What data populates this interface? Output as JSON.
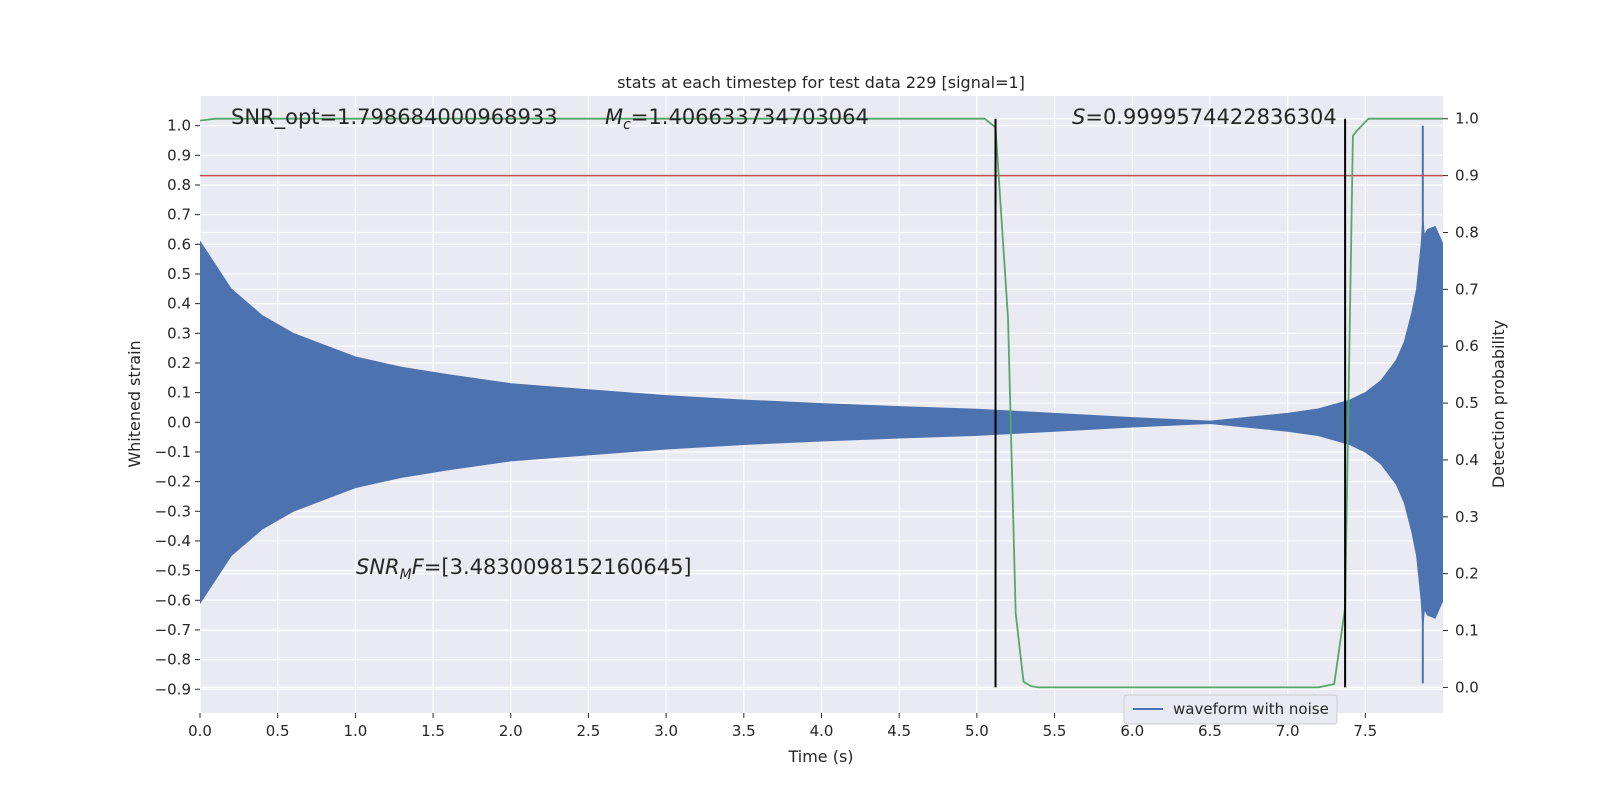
{
  "chart_data": {
    "type": "line",
    "title": "stats at each timestep for test data 229 [signal=1]",
    "xlabel": "Time (s)",
    "ylabel": "Whitened strain",
    "ylabel_right": "Detection probability",
    "xlim": [
      0,
      8.0
    ],
    "ylim": [
      -0.98,
      1.1
    ],
    "ylim_right": [
      -0.045,
      1.04
    ],
    "x_ticks": [
      "0.0",
      "0.5",
      "1.0",
      "1.5",
      "2.0",
      "2.5",
      "3.0",
      "3.5",
      "4.0",
      "4.5",
      "5.0",
      "5.5",
      "6.0",
      "6.5",
      "7.0",
      "7.5"
    ],
    "y_ticks": [
      "1.0",
      "0.9",
      "0.8",
      "0.7",
      "0.6",
      "0.5",
      "0.4",
      "0.3",
      "0.2",
      "0.1",
      "0.0",
      "−0.1",
      "−0.2",
      "−0.3",
      "−0.4",
      "−0.5",
      "−0.6",
      "−0.7",
      "−0.8",
      "−0.9"
    ],
    "y_ticks_right": [
      "1.0",
      "0.9",
      "0.8",
      "0.7",
      "0.6",
      "0.5",
      "0.4",
      "0.3",
      "0.2",
      "0.1",
      "0.0"
    ],
    "annotations": {
      "snr_opt": "SNR_opt=1.798684000968933",
      "mc_symbol": "M",
      "mc_sub": "c",
      "mc_value": "=1.406633734703064",
      "s_symbol": "S",
      "s_value": "=0.9999574422836304",
      "snrmf_symbol": "SNR",
      "snrmf_sub": "M",
      "snrmf_symbol2": "F",
      "snrmf_value": "=[3.4830098152160645]"
    },
    "series": [
      {
        "name": "waveform with noise",
        "color": "#4c72b0",
        "envelope_x": [
          0,
          0.2,
          0.4,
          0.6,
          0.8,
          1.0,
          1.3,
          1.6,
          2.0,
          2.5,
          3.0,
          3.5,
          4.0,
          4.5,
          5.0,
          5.5,
          6.0,
          6.5,
          7.0,
          7.2,
          7.4,
          7.5,
          7.6,
          7.7,
          7.75,
          7.8,
          7.83,
          7.86,
          7.87,
          7.88,
          7.9,
          7.95,
          8.0
        ],
        "envelope_y": [
          0.61,
          0.45,
          0.36,
          0.3,
          0.26,
          0.22,
          0.185,
          0.16,
          0.13,
          0.11,
          0.09,
          0.075,
          0.063,
          0.053,
          0.044,
          0.03,
          0.016,
          0.004,
          0.03,
          0.045,
          0.075,
          0.1,
          0.14,
          0.21,
          0.27,
          0.37,
          0.45,
          0.6,
          0.69,
          0.63,
          0.65,
          0.66,
          0.6
        ]
      },
      {
        "name": "",
        "color": "#55a868",
        "x": [
          0,
          0.1,
          5.05,
          5.12,
          5.2,
          5.25,
          5.3,
          5.35,
          5.4,
          7.2,
          7.3,
          7.37,
          7.42,
          7.45,
          7.52,
          8.0
        ],
        "y": [
          0.997,
          1.0,
          1.0,
          0.985,
          0.65,
          0.13,
          0.01,
          0.002,
          0.0,
          0.0,
          0.006,
          0.14,
          0.97,
          0.98,
          1.0,
          1.0
        ]
      }
    ],
    "threshold": {
      "value": 0.9,
      "color": "#c44e52"
    },
    "vertical_lines": {
      "x": [
        5.12,
        7.37
      ],
      "color": "#000000"
    },
    "spike": {
      "x": 7.87,
      "y": [
        -0.88,
        1.0
      ]
    },
    "legend": {
      "label": "waveform with noise",
      "placement": "bottom-right"
    },
    "grid": true,
    "colors": {
      "background": "#eaeaf2",
      "grid": "#ffffff"
    }
  }
}
